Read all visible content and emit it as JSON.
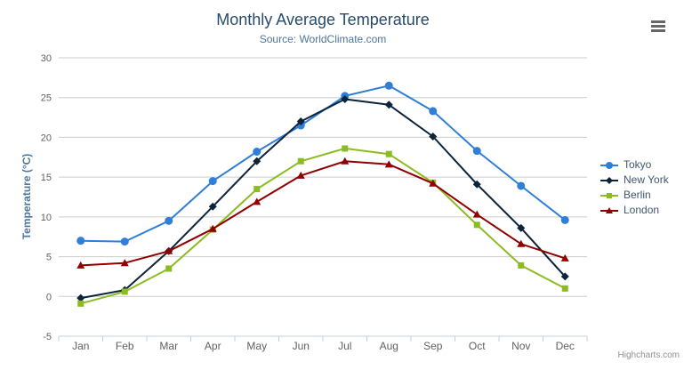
{
  "title": "Monthly Average Temperature",
  "subtitle": "Source: WorldClimate.com",
  "credits": "Highcharts.com",
  "colors": {
    "title": "#274b6d",
    "subtitle": "#4d759e",
    "axis_title": "#4d759e",
    "axis_labels": "#606060",
    "grid": "#cccccc",
    "axis_line": "#c0d0e0",
    "legend_text": "#3e576f",
    "credits_text": "#909090",
    "menu_icon": "#666666"
  },
  "chart_data": {
    "type": "line",
    "title": "Monthly Average Temperature",
    "subtitle": "Source: WorldClimate.com",
    "categories": [
      "Jan",
      "Feb",
      "Mar",
      "Apr",
      "May",
      "Jun",
      "Jul",
      "Aug",
      "Sep",
      "Oct",
      "Nov",
      "Dec"
    ],
    "xlabel": "",
    "ylabel": "Temperature (°C)",
    "ylim": [
      -5,
      30
    ],
    "yticks": [
      -5,
      0,
      5,
      10,
      15,
      20,
      25,
      30
    ],
    "grid": true,
    "legend_position": "right",
    "series": [
      {
        "name": "Tokyo",
        "color": "#2f7ed8",
        "marker": "circle",
        "values": [
          7.0,
          6.9,
          9.5,
          14.5,
          18.2,
          21.5,
          25.2,
          26.5,
          23.3,
          18.3,
          13.9,
          9.6
        ]
      },
      {
        "name": "New York",
        "color": "#0d233a",
        "marker": "diamond",
        "values": [
          -0.2,
          0.8,
          5.7,
          11.3,
          17.0,
          22.0,
          24.8,
          24.1,
          20.1,
          14.1,
          8.6,
          2.5
        ]
      },
      {
        "name": "Berlin",
        "color": "#8bbc21",
        "marker": "square",
        "values": [
          -0.9,
          0.6,
          3.5,
          8.4,
          13.5,
          17.0,
          18.6,
          17.9,
          14.3,
          9.0,
          3.9,
          1.0
        ]
      },
      {
        "name": "London",
        "color": "#910000",
        "marker": "triangle",
        "values": [
          3.9,
          4.2,
          5.7,
          8.5,
          11.9,
          15.2,
          17.0,
          16.6,
          14.2,
          10.3,
          6.6,
          4.8
        ]
      }
    ]
  }
}
